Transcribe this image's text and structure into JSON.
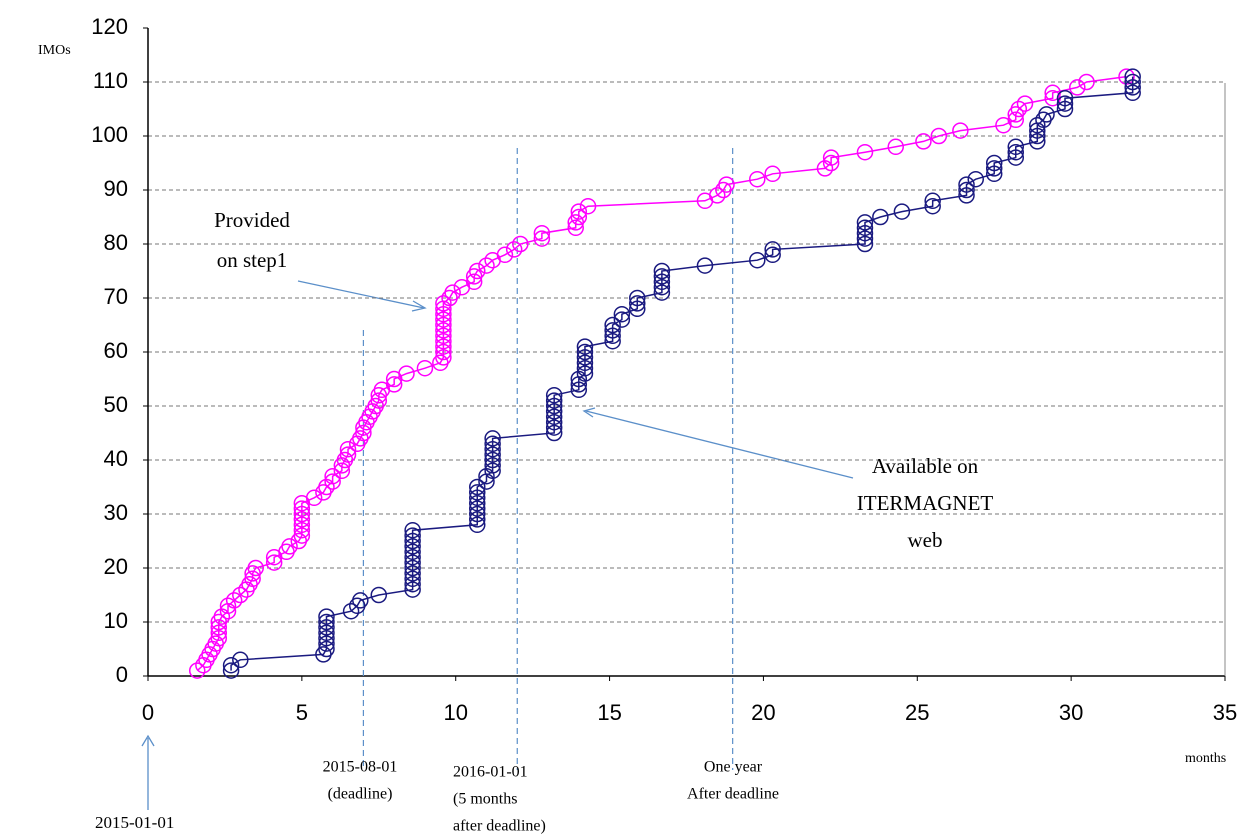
{
  "chart_data": {
    "type": "line",
    "y_label": "IMOs",
    "x_label": "months",
    "xlim": [
      0,
      35
    ],
    "xticks": [
      0,
      5,
      10,
      15,
      20,
      25,
      30,
      35
    ],
    "ylim": [
      0,
      120
    ],
    "yticks": [
      0,
      10,
      20,
      30,
      40,
      50,
      60,
      70,
      80,
      90,
      100,
      110,
      120
    ],
    "grid": true,
    "series": [
      {
        "color": "#ff00ff",
        "x": [
          1.6,
          1.8,
          1.9,
          2.0,
          2.1,
          2.2,
          2.3,
          2.3,
          2.3,
          2.3,
          2.4,
          2.6,
          2.6,
          2.8,
          3.0,
          3.2,
          3.3,
          3.4,
          3.4,
          3.5,
          4.1,
          4.1,
          4.5,
          4.6,
          4.9,
          5.0,
          5.0,
          5.0,
          5.0,
          5.0,
          5.0,
          5.0,
          5.4,
          5.7,
          5.8,
          6.0,
          6.0,
          6.3,
          6.3,
          6.4,
          6.5,
          6.5,
          6.8,
          6.9,
          7.0,
          7.0,
          7.1,
          7.2,
          7.3,
          7.4,
          7.5,
          7.5,
          7.6,
          8.0,
          8.0,
          8.4,
          9.0,
          9.5,
          9.6,
          9.6,
          9.6,
          9.6,
          9.6,
          9.6,
          9.6,
          9.6,
          9.6,
          9.6,
          9.6,
          9.8,
          9.9,
          10.2,
          10.6,
          10.6,
          10.7,
          11.0,
          11.2,
          11.6,
          11.9,
          12.1,
          12.8,
          12.8,
          13.9,
          13.9,
          14.0,
          14.0,
          14.3,
          18.1,
          18.5,
          18.7,
          18.8,
          19.8,
          20.3,
          22.0,
          22.2,
          22.2,
          23.3,
          24.3,
          25.2,
          25.7,
          26.4,
          27.8,
          28.2,
          28.2,
          28.3,
          28.5,
          29.4,
          29.4,
          30.2,
          30.5,
          31.8
        ],
        "values": [
          1,
          2,
          3,
          4,
          5,
          6,
          7,
          8,
          9,
          10,
          11,
          12,
          13,
          14,
          15,
          16,
          17,
          18,
          19,
          20,
          21,
          22,
          23,
          24,
          25,
          26,
          27,
          28,
          29,
          30,
          31,
          32,
          33,
          34,
          35,
          36,
          37,
          38,
          39,
          40,
          41,
          42,
          43,
          44,
          45,
          46,
          47,
          48,
          49,
          50,
          51,
          52,
          53,
          54,
          55,
          56,
          57,
          58,
          59,
          60,
          61,
          62,
          63,
          64,
          65,
          66,
          67,
          68,
          69,
          70,
          71,
          72,
          73,
          74,
          75,
          76,
          77,
          78,
          79,
          80,
          81,
          82,
          83,
          84,
          85,
          86,
          87,
          88,
          89,
          90,
          91,
          92,
          93,
          94,
          95,
          96,
          97,
          98,
          99,
          100,
          101,
          102,
          103,
          104,
          105,
          106,
          107,
          108,
          109,
          110,
          111
        ]
      },
      {
        "color": "#1a1a80",
        "x": [
          2.7,
          2.7,
          3.0,
          5.7,
          5.8,
          5.8,
          5.8,
          5.8,
          5.8,
          5.8,
          5.8,
          6.6,
          6.8,
          6.9,
          7.5,
          8.6,
          8.6,
          8.6,
          8.6,
          8.6,
          8.6,
          8.6,
          8.6,
          8.6,
          8.6,
          8.6,
          8.6,
          10.7,
          10.7,
          10.7,
          10.7,
          10.7,
          10.7,
          10.7,
          10.7,
          11.0,
          11.0,
          11.2,
          11.2,
          11.2,
          11.2,
          11.2,
          11.2,
          11.2,
          13.2,
          13.2,
          13.2,
          13.2,
          13.2,
          13.2,
          13.2,
          13.2,
          14.0,
          14.0,
          14.0,
          14.2,
          14.2,
          14.2,
          14.2,
          14.2,
          14.2,
          15.1,
          15.1,
          15.1,
          15.1,
          15.4,
          15.4,
          15.9,
          15.9,
          15.9,
          16.7,
          16.7,
          16.7,
          16.7,
          16.7,
          18.1,
          19.8,
          20.3,
          20.3,
          23.3,
          23.3,
          23.3,
          23.3,
          23.3,
          23.8,
          24.5,
          25.5,
          25.5,
          26.6,
          26.6,
          26.6,
          26.9,
          27.5,
          27.5,
          27.5,
          28.2,
          28.2,
          28.2,
          28.9,
          28.9,
          28.9,
          28.9,
          29.1,
          29.2,
          29.8,
          29.8,
          29.8,
          32.0,
          32.0,
          32.0,
          32.0
        ],
        "values": [
          1,
          2,
          3,
          4,
          5,
          6,
          7,
          8,
          9,
          10,
          11,
          12,
          13,
          14,
          15,
          16,
          17,
          18,
          19,
          20,
          21,
          22,
          23,
          24,
          25,
          26,
          27,
          28,
          29,
          30,
          31,
          32,
          33,
          34,
          35,
          36,
          37,
          38,
          39,
          40,
          41,
          42,
          43,
          44,
          45,
          46,
          47,
          48,
          49,
          50,
          51,
          52,
          53,
          54,
          55,
          56,
          57,
          58,
          59,
          60,
          61,
          62,
          63,
          64,
          65,
          66,
          67,
          68,
          69,
          70,
          71,
          72,
          73,
          74,
          75,
          76,
          77,
          78,
          79,
          80,
          81,
          82,
          83,
          84,
          85,
          86,
          87,
          88,
          89,
          90,
          91,
          92,
          93,
          94,
          95,
          96,
          97,
          98,
          99,
          100,
          101,
          102,
          103,
          104,
          105,
          106,
          107,
          108,
          109,
          110,
          111
        ]
      }
    ],
    "markers": [
      {
        "x": 7,
        "text": [
          "2015-08-01",
          "(deadline)"
        ]
      },
      {
        "x": 12,
        "text": [
          "2016-01-01",
          "(5 months",
          "after deadline)"
        ]
      },
      {
        "x": 19,
        "text": [
          "One  year",
          "After deadline"
        ]
      }
    ],
    "start_label": "2015-01-01",
    "annotations": [
      {
        "text": [
          "Provided",
          "on step1"
        ]
      },
      {
        "text": [
          "Available  on",
          "ITERMAGNET",
          "web"
        ]
      }
    ]
  }
}
